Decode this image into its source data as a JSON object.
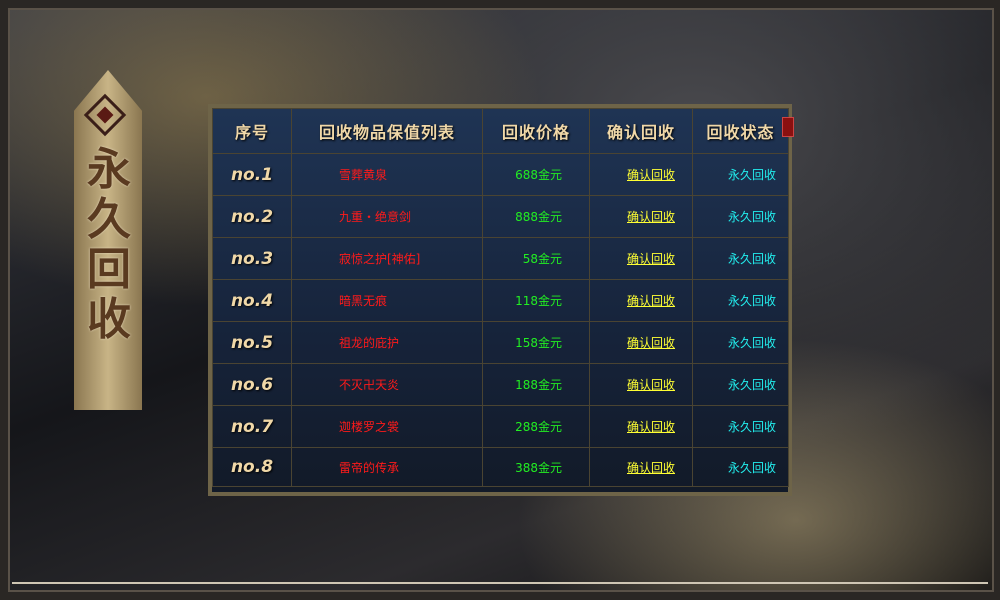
{
  "banner": {
    "title": "永久回收"
  },
  "table": {
    "headers": [
      "序号",
      "回收物品保值列表",
      "回收价格",
      "确认回收",
      "回收状态"
    ],
    "rows": [
      {
        "no": "no.1",
        "item": "雪葬黄泉",
        "price": "688金元",
        "action": "确认回收",
        "status": "永久回收"
      },
      {
        "no": "no.2",
        "item": "九重・绝意剑",
        "price": "888金元",
        "action": "确认回收",
        "status": "永久回收"
      },
      {
        "no": "no.3",
        "item": "寂惊之护[神佑]",
        "price": "58金元",
        "action": "确认回收",
        "status": "永久回收"
      },
      {
        "no": "no.4",
        "item": "暗黑无痕",
        "price": "118金元",
        "action": "确认回收",
        "status": "永久回收"
      },
      {
        "no": "no.5",
        "item": "祖龙的庇护",
        "price": "158金元",
        "action": "确认回收",
        "status": "永久回收"
      },
      {
        "no": "no.6",
        "item": "不灭卍天炎",
        "price": "188金元",
        "action": "确认回收",
        "status": "永久回收"
      },
      {
        "no": "no.7",
        "item": "迦楼罗之裳",
        "price": "288金元",
        "action": "确认回收",
        "status": "永久回收"
      },
      {
        "no": "no.8",
        "item": "雷帝的传承",
        "price": "388金元",
        "action": "确认回收",
        "status": "永久回收"
      }
    ]
  },
  "colors": {
    "item": "#ff1a1a",
    "price": "#22ee22",
    "action": "#ffff33",
    "status": "#22eeee"
  }
}
